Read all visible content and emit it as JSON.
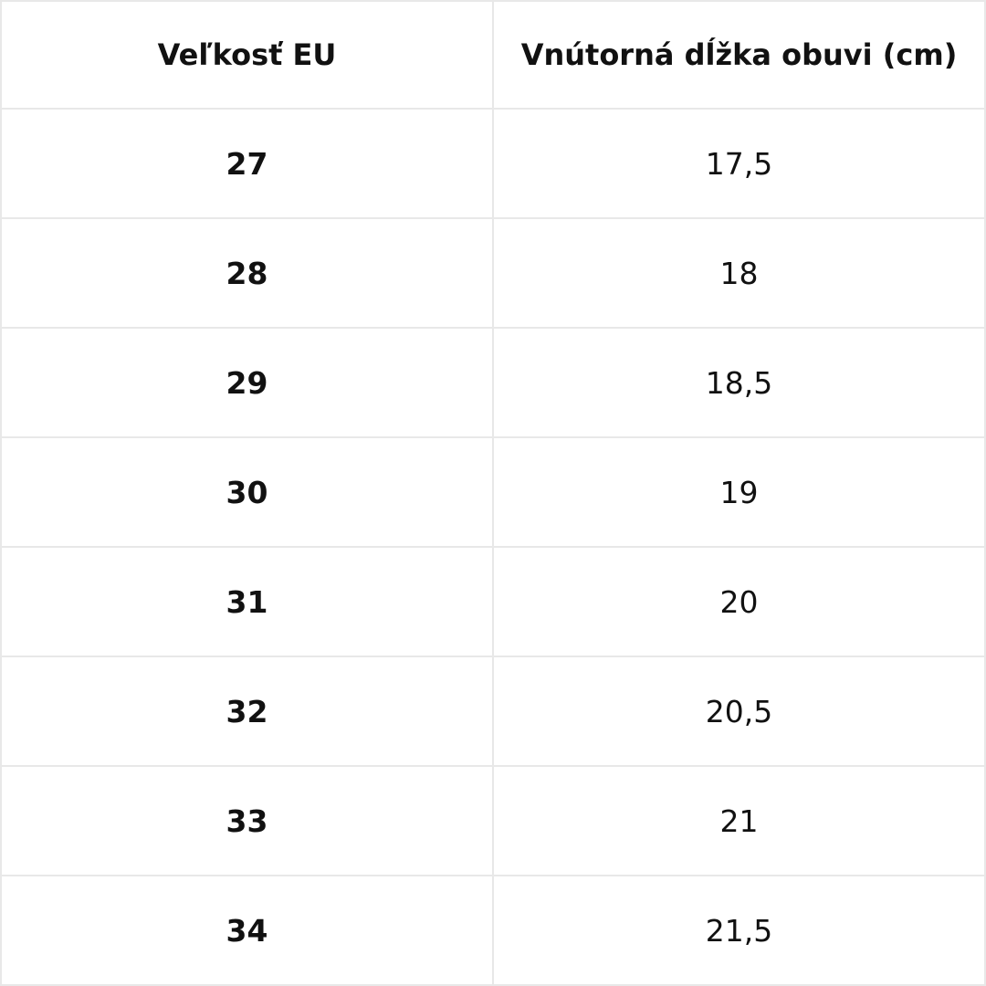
{
  "table": {
    "header": [
      "Veľkosť EU",
      "Vnútorná dĺžka obuvi (cm)"
    ],
    "rows": [
      [
        "27",
        "17,5"
      ],
      [
        "28",
        "18"
      ],
      [
        "29",
        "18,5"
      ],
      [
        "30",
        "19"
      ],
      [
        "31",
        "20"
      ],
      [
        "32",
        "20,5"
      ],
      [
        "33",
        "21"
      ],
      [
        "34",
        "21,5"
      ]
    ]
  }
}
